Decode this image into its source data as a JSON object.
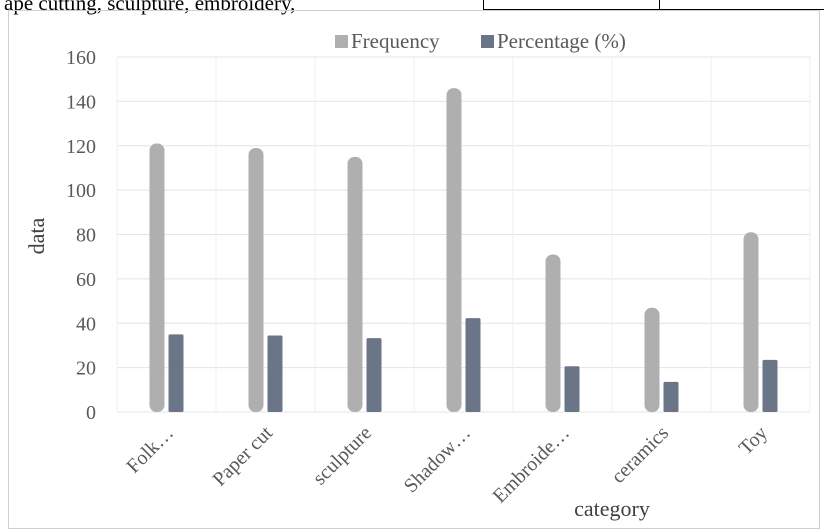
{
  "header": {
    "top_text": "ape cutting, sculpture, embroidery,"
  },
  "chart_data": {
    "type": "bar",
    "categories": [
      "Folk…",
      "Paper cut",
      "sculpture",
      "Shadow…",
      "Embroide…",
      "ceramics",
      "Toy"
    ],
    "series": [
      {
        "name": "Frequency",
        "values": [
          121,
          119,
          115,
          146,
          71,
          47,
          81
        ]
      },
      {
        "name": "Percentage (%)",
        "values": [
          35,
          34.5,
          33.3,
          42.3,
          20.6,
          13.6,
          23.5
        ]
      }
    ],
    "xlabel": "category",
    "ylabel": "data",
    "ylim": [
      0,
      160
    ],
    "yticks": [
      0,
      20,
      40,
      60,
      80,
      100,
      120,
      140,
      160
    ],
    "grid": true,
    "legend_position": "top",
    "colors": {
      "Frequency": "#afafaf",
      "Percentage (%)": "#6a7687",
      "grid": "#e4e4e4"
    }
  }
}
